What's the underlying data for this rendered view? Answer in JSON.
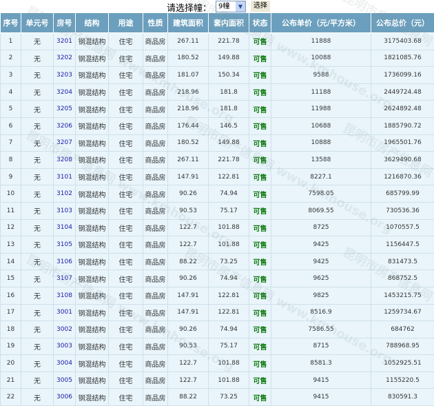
{
  "selector": {
    "label": "请选择幢：",
    "selected": "9幢",
    "button": "选择"
  },
  "colors": {
    "header_bg": "#6b9fbd",
    "row_bg": "#e9f5fb",
    "status": "#117a11",
    "room_link": "#1a1aa6"
  },
  "columns": [
    "序号",
    "单元号",
    "房号",
    "结构",
    "用途",
    "性质",
    "建筑面积",
    "套内面积",
    "状态",
    "公布单价（元/平方米）",
    "公布总价（元）"
  ],
  "rows": [
    [
      "1",
      "无",
      "3201",
      "钢混结构",
      "住宅",
      "商品房",
      "267.11",
      "221.78",
      "可售",
      "11888",
      "3175403.68"
    ],
    [
      "2",
      "无",
      "3202",
      "钢混结构",
      "住宅",
      "商品房",
      "180.52",
      "149.88",
      "可售",
      "10088",
      "1821085.76"
    ],
    [
      "3",
      "无",
      "3203",
      "钢混结构",
      "住宅",
      "商品房",
      "181.07",
      "150.34",
      "可售",
      "9588",
      "1736099.16"
    ],
    [
      "4",
      "无",
      "3204",
      "钢混结构",
      "住宅",
      "商品房",
      "218.96",
      "181.8",
      "可售",
      "11188",
      "2449724.48"
    ],
    [
      "5",
      "无",
      "3205",
      "钢混结构",
      "住宅",
      "商品房",
      "218.96",
      "181.8",
      "可售",
      "11988",
      "2624892.48"
    ],
    [
      "6",
      "无",
      "3206",
      "钢混结构",
      "住宅",
      "商品房",
      "176.44",
      "146.5",
      "可售",
      "10688",
      "1885790.72"
    ],
    [
      "7",
      "无",
      "3207",
      "钢混结构",
      "住宅",
      "商品房",
      "180.52",
      "149.88",
      "可售",
      "10888",
      "1965501.76"
    ],
    [
      "8",
      "无",
      "3208",
      "钢混结构",
      "住宅",
      "商品房",
      "267.11",
      "221.78",
      "可售",
      "13588",
      "3629490.68"
    ],
    [
      "9",
      "无",
      "3101",
      "钢混结构",
      "住宅",
      "商品房",
      "147.91",
      "122.81",
      "可售",
      "8227.1",
      "1216870.36"
    ],
    [
      "10",
      "无",
      "3102",
      "钢混结构",
      "住宅",
      "商品房",
      "90.26",
      "74.94",
      "可售",
      "7598.05",
      "685799.99"
    ],
    [
      "11",
      "无",
      "3103",
      "钢混结构",
      "住宅",
      "商品房",
      "90.53",
      "75.17",
      "可售",
      "8069.55",
      "730536.36"
    ],
    [
      "12",
      "无",
      "3104",
      "钢混结构",
      "住宅",
      "商品房",
      "122.7",
      "101.88",
      "可售",
      "8725",
      "1070557.5"
    ],
    [
      "13",
      "无",
      "3105",
      "钢混结构",
      "住宅",
      "商品房",
      "122.7",
      "101.88",
      "可售",
      "9425",
      "1156447.5"
    ],
    [
      "14",
      "无",
      "3106",
      "钢混结构",
      "住宅",
      "商品房",
      "88.22",
      "73.25",
      "可售",
      "9425",
      "831473.5"
    ],
    [
      "15",
      "无",
      "3107",
      "钢混结构",
      "住宅",
      "商品房",
      "90.26",
      "74.94",
      "可售",
      "9625",
      "868752.5"
    ],
    [
      "16",
      "无",
      "3108",
      "钢混结构",
      "住宅",
      "商品房",
      "147.91",
      "122.81",
      "可售",
      "9825",
      "1453215.75"
    ],
    [
      "17",
      "无",
      "3001",
      "钢混结构",
      "住宅",
      "商品房",
      "147.91",
      "122.81",
      "可售",
      "8516.9",
      "1259734.67"
    ],
    [
      "18",
      "无",
      "3002",
      "钢混结构",
      "住宅",
      "商品房",
      "90.26",
      "74.94",
      "可售",
      "7586.55",
      "684762"
    ],
    [
      "19",
      "无",
      "3003",
      "钢混结构",
      "住宅",
      "商品房",
      "90.53",
      "75.17",
      "可售",
      "8715",
      "788968.95"
    ],
    [
      "20",
      "无",
      "3004",
      "钢混结构",
      "住宅",
      "商品房",
      "122.7",
      "101.88",
      "可售",
      "8581.3",
      "1052925.51"
    ],
    [
      "21",
      "无",
      "3005",
      "钢混结构",
      "住宅",
      "商品房",
      "122.7",
      "101.88",
      "可售",
      "9415",
      "1155220.5"
    ],
    [
      "22",
      "无",
      "3006",
      "钢混结构",
      "住宅",
      "商品房",
      "88.22",
      "73.25",
      "可售",
      "9415",
      "830591.3"
    ]
  ],
  "watermark": "昆明市房产信息网 www.kmhouse.org"
}
